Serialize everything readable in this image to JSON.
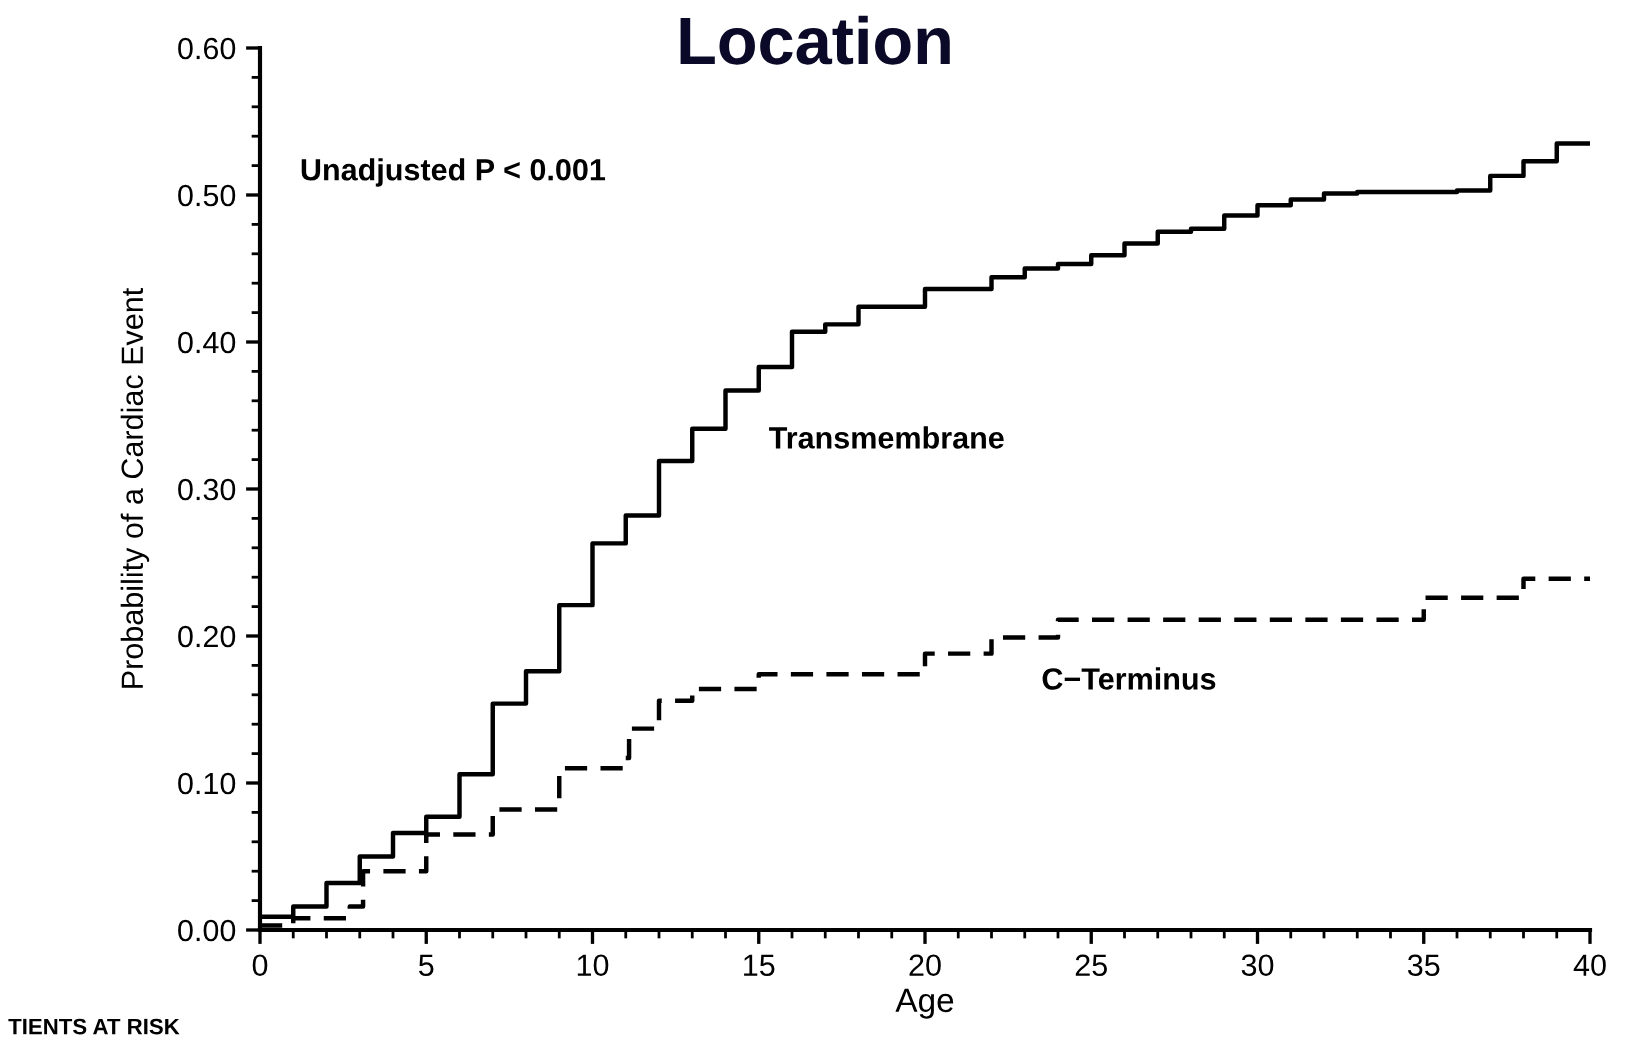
{
  "chart_data": {
    "type": "step",
    "title": "Location",
    "xlabel": "Age",
    "ylabel": "Probability of a Cardiac Event",
    "xlim": [
      0,
      40
    ],
    "xticks": [
      0,
      5,
      10,
      15,
      20,
      25,
      30,
      35,
      40
    ],
    "ylim": [
      0,
      0.6
    ],
    "yticks": [
      {
        "value": 0,
        "label": "0.00"
      },
      {
        "value": 0.1,
        "label": "0.10"
      },
      {
        "value": 0.2,
        "label": "0.20"
      },
      {
        "value": 0.3,
        "label": "0.30"
      },
      {
        "value": 0.4,
        "label": "0.40"
      },
      {
        "value": 0.5,
        "label": "0.50"
      },
      {
        "value": 0.6,
        "label": "0.60"
      }
    ],
    "grid": false,
    "legend": false,
    "series": [
      {
        "name": "Transmembrane",
        "color": "#000000",
        "line_style": "solid",
        "x": [
          0,
          1,
          2,
          3,
          4,
          5,
          6,
          7,
          8,
          9,
          10,
          11,
          12,
          13,
          14,
          15,
          16,
          17,
          18,
          20,
          22,
          23,
          24,
          25,
          26,
          27,
          28,
          29,
          30,
          31,
          32,
          33,
          36,
          37,
          38,
          39,
          40
        ],
        "values": [
          0.009,
          0.016,
          0.032,
          0.05,
          0.066,
          0.077,
          0.106,
          0.154,
          0.176,
          0.221,
          0.263,
          0.282,
          0.319,
          0.341,
          0.367,
          0.383,
          0.407,
          0.412,
          0.424,
          0.436,
          0.444,
          0.45,
          0.453,
          0.459,
          0.467,
          0.475,
          0.477,
          0.486,
          0.493,
          0.497,
          0.501,
          0.502,
          0.503,
          0.513,
          0.523,
          0.535,
          0.535
        ]
      },
      {
        "name": "C−Terminus",
        "color": "#000000",
        "line_style": "dashed",
        "x": [
          0,
          1,
          2.7,
          3.1,
          5,
          7,
          9,
          11,
          11.1,
          12,
          13,
          15,
          20,
          22,
          24,
          35,
          38,
          40
        ],
        "values": [
          0.003,
          0.008,
          0.016,
          0.04,
          0.065,
          0.082,
          0.11,
          0.117,
          0.137,
          0.156,
          0.164,
          0.174,
          0.188,
          0.199,
          0.211,
          0.226,
          0.239,
          0.239
        ]
      }
    ],
    "annotations": [
      "Unadjusted P < 0.001",
      "TIENTS AT RISK"
    ]
  }
}
